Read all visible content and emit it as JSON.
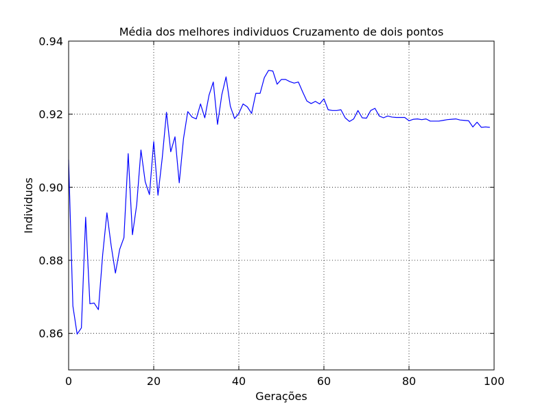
{
  "chart_data": {
    "type": "line",
    "title": "Média dos melhores individuos Cruzamento de dois pontos",
    "xlabel": "Gerações",
    "ylabel": "Individuos",
    "xlim": [
      0,
      100
    ],
    "ylim": [
      0.85,
      0.94
    ],
    "xticks": [
      0,
      20,
      40,
      60,
      80,
      100
    ],
    "xtick_labels": [
      "0",
      "20",
      "40",
      "60",
      "80",
      "100"
    ],
    "yticks": [
      0.86,
      0.88,
      0.9,
      0.92,
      0.94
    ],
    "ytick_labels": [
      "0.86",
      "0.88",
      "0.90",
      "0.92",
      "0.94"
    ],
    "grid": true,
    "series": [
      {
        "color": "#0000ff",
        "x": [
          0,
          1,
          2,
          3,
          4,
          5,
          6,
          7,
          8,
          9,
          10,
          11,
          12,
          13,
          14,
          15,
          16,
          17,
          18,
          19,
          20,
          21,
          22,
          23,
          24,
          25,
          26,
          27,
          28,
          29,
          30,
          31,
          32,
          33,
          34,
          35,
          36,
          37,
          38,
          39,
          40,
          41,
          42,
          43,
          44,
          45,
          46,
          47,
          48,
          49,
          50,
          51,
          52,
          53,
          54,
          55,
          56,
          57,
          58,
          59,
          60,
          61,
          62,
          63,
          64,
          65,
          66,
          67,
          68,
          69,
          70,
          71,
          72,
          73,
          74,
          75,
          76,
          77,
          78,
          79,
          80,
          81,
          82,
          83,
          84,
          85,
          86,
          87,
          88,
          89,
          90,
          91,
          92,
          93,
          94,
          95,
          96,
          97,
          98,
          99
        ],
        "y": [
          0.9075,
          0.8675,
          0.8598,
          0.8615,
          0.8918,
          0.8681,
          0.8683,
          0.8665,
          0.8815,
          0.893,
          0.884,
          0.8765,
          0.883,
          0.8862,
          0.9092,
          0.887,
          0.8952,
          0.9102,
          0.9015,
          0.898,
          0.9125,
          0.8978,
          0.908,
          0.9205,
          0.9097,
          0.9138,
          0.9012,
          0.9133,
          0.9207,
          0.9192,
          0.9187,
          0.9228,
          0.919,
          0.9252,
          0.9288,
          0.9172,
          0.9253,
          0.9302,
          0.9222,
          0.9188,
          0.9202,
          0.9228,
          0.922,
          0.9202,
          0.9257,
          0.9257,
          0.93,
          0.932,
          0.9318,
          0.9282,
          0.9295,
          0.9295,
          0.9289,
          0.9285,
          0.9288,
          0.9261,
          0.9236,
          0.9229,
          0.9235,
          0.9228,
          0.9242,
          0.9212,
          0.921,
          0.921,
          0.9212,
          0.919,
          0.918,
          0.9187,
          0.921,
          0.919,
          0.9189,
          0.921,
          0.9216,
          0.9195,
          0.919,
          0.9195,
          0.9192,
          0.9191,
          0.9191,
          0.9191,
          0.9182,
          0.9186,
          0.9187,
          0.9185,
          0.9187,
          0.9181,
          0.9181,
          0.9181,
          0.9183,
          0.9185,
          0.9186,
          0.9187,
          0.9184,
          0.9183,
          0.9182,
          0.9165,
          0.9178,
          0.9164,
          0.9165,
          0.9164
        ]
      }
    ]
  }
}
